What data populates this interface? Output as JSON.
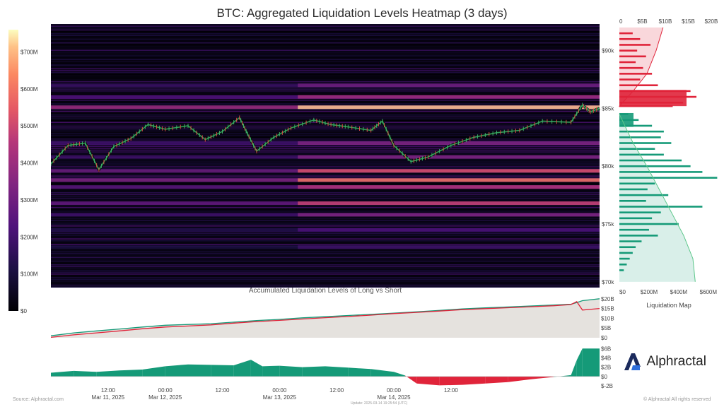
{
  "title": "BTC: Aggregated Liquidation Levels Heatmap (3 days)",
  "colorbar": {
    "ticks": [
      "$0",
      "$100M",
      "$200M",
      "$300M",
      "$400M",
      "$500M",
      "$600M",
      "$700M"
    ],
    "tick_values": [
      0,
      100,
      200,
      300,
      400,
      500,
      600,
      700
    ],
    "max": 760
  },
  "heatmap": {
    "price_ticks": [
      "$70k",
      "$75k",
      "$80k",
      "$85k",
      "$90k"
    ],
    "price_values": [
      70000,
      75000,
      80000,
      85000,
      90000
    ],
    "ylim": [
      69500,
      92300
    ]
  },
  "liq_map": {
    "label": "Liquidation Map",
    "top_ticks": [
      "0",
      "$5B",
      "$10B",
      "$15B",
      "$20B"
    ],
    "bottom_ticks": [
      "$0",
      "$200M",
      "$400M",
      "$600M"
    ],
    "short_color": "#e0243a",
    "long_color": "#159a78"
  },
  "accum": {
    "title": "Accumulated Liquidation Levels of Long vs Short",
    "ticks": [
      "$0",
      "$5B",
      "$10B",
      "$15B",
      "$20B"
    ],
    "tick_values": [
      0,
      5,
      10,
      15,
      20
    ]
  },
  "delta": {
    "ticks": [
      "$-2B",
      "$0",
      "$2B",
      "$4B",
      "$6B"
    ],
    "tick_values": [
      -2,
      0,
      2,
      4,
      6
    ]
  },
  "time_axis": [
    {
      "time": "12:00",
      "date": "Mar 11, 2025"
    },
    {
      "time": "00:00",
      "date": "Mar 12, 2025"
    },
    {
      "time": "12:00",
      "date": ""
    },
    {
      "time": "00:00",
      "date": "Mar 13, 2025"
    },
    {
      "time": "12:00",
      "date": ""
    },
    {
      "time": "00:00",
      "date": "Mar 14, 2025"
    },
    {
      "time": "12:00",
      "date": ""
    }
  ],
  "footer": {
    "source": "Source: Alphractal.com",
    "update": "Update: 2025-03-14 19:25:54 (UTC)",
    "rights": "© Alphractal All rights reserved"
  },
  "logo": {
    "text": "Alphractal"
  },
  "chart_data": [
    {
      "type": "heatmap",
      "title": "BTC: Aggregated Liquidation Levels Heatmap (3 days)",
      "x_range": [
        "Mar 11, 2025 00:00",
        "Mar 14, 2025 19:25"
      ],
      "ylim": [
        69500,
        92300
      ],
      "price_series": [
        {
          "day": 0.0,
          "price": 80200
        },
        {
          "day": 0.15,
          "price": 81800
        },
        {
          "day": 0.3,
          "price": 82000
        },
        {
          "day": 0.42,
          "price": 79700
        },
        {
          "day": 0.55,
          "price": 81700
        },
        {
          "day": 0.7,
          "price": 82400
        },
        {
          "day": 0.85,
          "price": 83600
        },
        {
          "day": 1.0,
          "price": 83200
        },
        {
          "day": 1.2,
          "price": 83500
        },
        {
          "day": 1.35,
          "price": 82300
        },
        {
          "day": 1.5,
          "price": 83000
        },
        {
          "day": 1.65,
          "price": 84200
        },
        {
          "day": 1.72,
          "price": 82800
        },
        {
          "day": 1.8,
          "price": 81300
        },
        {
          "day": 1.95,
          "price": 82500
        },
        {
          "day": 2.1,
          "price": 83300
        },
        {
          "day": 2.3,
          "price": 84000
        },
        {
          "day": 2.45,
          "price": 83600
        },
        {
          "day": 2.6,
          "price": 83400
        },
        {
          "day": 2.8,
          "price": 83100
        },
        {
          "day": 2.9,
          "price": 83900
        },
        {
          "day": 3.0,
          "price": 81800
        },
        {
          "day": 3.15,
          "price": 80400
        },
        {
          "day": 3.3,
          "price": 80800
        },
        {
          "day": 3.5,
          "price": 81800
        },
        {
          "day": 3.7,
          "price": 82500
        },
        {
          "day": 3.9,
          "price": 82900
        },
        {
          "day": 4.1,
          "price": 83100
        },
        {
          "day": 4.3,
          "price": 83900
        },
        {
          "day": 4.55,
          "price": 83800
        },
        {
          "day": 4.65,
          "price": 85300
        },
        {
          "day": 4.72,
          "price": 84700
        },
        {
          "day": 4.8,
          "price": 85000
        }
      ],
      "bands": [
        {
          "price": 85100,
          "intensity": 0.95
        },
        {
          "price": 86000,
          "intensity": 0.55
        },
        {
          "price": 87000,
          "intensity": 0.4
        },
        {
          "price": 79600,
          "intensity": 0.7
        },
        {
          "price": 78800,
          "intensity": 0.8
        },
        {
          "price": 78200,
          "intensity": 0.6
        },
        {
          "price": 76800,
          "intensity": 0.65
        },
        {
          "price": 75800,
          "intensity": 0.45
        },
        {
          "price": 82000,
          "intensity": 0.45
        },
        {
          "price": 80800,
          "intensity": 0.45
        },
        {
          "price": 74500,
          "intensity": 0.3
        },
        {
          "price": 73000,
          "intensity": 0.25
        }
      ]
    },
    {
      "type": "bar",
      "title": "Liquidation Map",
      "orientation": "horizontal",
      "x_unit": "$M",
      "short_levels": [
        {
          "price": 91500,
          "value": 90
        },
        {
          "price": 91000,
          "value": 140
        },
        {
          "price": 90500,
          "value": 210
        },
        {
          "price": 90000,
          "value": 120
        },
        {
          "price": 89500,
          "value": 180
        },
        {
          "price": 89000,
          "value": 110
        },
        {
          "price": 88500,
          "value": 160
        },
        {
          "price": 88000,
          "value": 220
        },
        {
          "price": 87500,
          "value": 140
        },
        {
          "price": 87000,
          "value": 260
        },
        {
          "price": 86500,
          "value": 480
        },
        {
          "price": 86000,
          "value": 520
        },
        {
          "price": 85500,
          "value": 430
        },
        {
          "price": 85200,
          "value": 360
        }
      ],
      "long_levels": [
        {
          "price": 84500,
          "value": 60
        },
        {
          "price": 84000,
          "value": 130
        },
        {
          "price": 83500,
          "value": 220
        },
        {
          "price": 83000,
          "value": 300
        },
        {
          "price": 82500,
          "value": 280
        },
        {
          "price": 82000,
          "value": 350
        },
        {
          "price": 81500,
          "value": 240
        },
        {
          "price": 81000,
          "value": 300
        },
        {
          "price": 80500,
          "value": 420
        },
        {
          "price": 80000,
          "value": 480
        },
        {
          "price": 79500,
          "value": 560
        },
        {
          "price": 79000,
          "value": 660
        },
        {
          "price": 78500,
          "value": 240
        },
        {
          "price": 78000,
          "value": 190
        },
        {
          "price": 77500,
          "value": 330
        },
        {
          "price": 77000,
          "value": 180
        },
        {
          "price": 76500,
          "value": 560
        },
        {
          "price": 76000,
          "value": 280
        },
        {
          "price": 75500,
          "value": 220
        },
        {
          "price": 75000,
          "value": 400
        },
        {
          "price": 74500,
          "value": 200
        },
        {
          "price": 74000,
          "value": 260
        },
        {
          "price": 73500,
          "value": 150
        },
        {
          "price": 73000,
          "value": 110
        },
        {
          "price": 72500,
          "value": 90
        },
        {
          "price": 72000,
          "value": 70
        },
        {
          "price": 71500,
          "value": 50
        },
        {
          "price": 71000,
          "value": 30
        }
      ],
      "cumulative_short_B": [
        {
          "price": 85200,
          "value": 0
        },
        {
          "price": 86500,
          "value": 3
        },
        {
          "price": 88000,
          "value": 6
        },
        {
          "price": 90000,
          "value": 8
        },
        {
          "price": 92000,
          "value": 9.5
        }
      ],
      "cumulative_long_B": [
        {
          "price": 84500,
          "value": 0
        },
        {
          "price": 82000,
          "value": 3
        },
        {
          "price": 80000,
          "value": 6
        },
        {
          "price": 77000,
          "value": 10
        },
        {
          "price": 74000,
          "value": 14
        },
        {
          "price": 72000,
          "value": 16
        },
        {
          "price": 70000,
          "value": 16.5
        }
      ]
    },
    {
      "type": "area",
      "title": "Accumulated Liquidation Levels of Long vs Short",
      "ylabel": "",
      "ylim": [
        0,
        21
      ],
      "x_days": [
        0,
        0.2,
        0.4,
        0.6,
        0.8,
        1.0,
        1.2,
        1.4,
        1.6,
        1.8,
        2.0,
        2.2,
        2.4,
        2.6,
        2.8,
        3.0,
        3.2,
        3.4,
        3.6,
        3.8,
        4.0,
        4.2,
        4.4,
        4.55,
        4.6,
        4.65,
        4.8
      ],
      "series": [
        {
          "name": "",
          "color": "#159a78",
          "values": [
            1,
            2.5,
            3.5,
            4.5,
            5.5,
            6.4,
            6.8,
            7.2,
            8.0,
            8.8,
            9.4,
            10.2,
            10.8,
            11.4,
            12.0,
            12.6,
            13.3,
            14.0,
            14.8,
            15.3,
            15.8,
            16.3,
            16.8,
            17.2,
            18.0,
            19.0,
            20.0
          ]
        },
        {
          "name": "",
          "color": "#e0243a",
          "values": [
            0.2,
            1.5,
            2.5,
            3.5,
            4.6,
            5.5,
            6.0,
            6.6,
            7.5,
            8.3,
            8.9,
            9.6,
            10.3,
            10.9,
            11.6,
            12.4,
            13.0,
            13.7,
            14.4,
            14.9,
            15.4,
            15.9,
            16.4,
            17.0,
            18.5,
            14.2,
            15.0
          ]
        }
      ]
    },
    {
      "type": "area",
      "title": "",
      "ylim": [
        -2,
        6.5
      ],
      "x_days": [
        0,
        0.2,
        0.4,
        0.6,
        0.8,
        1.0,
        1.2,
        1.4,
        1.6,
        1.75,
        1.85,
        2.0,
        2.2,
        2.4,
        2.6,
        2.8,
        3.0,
        3.1,
        3.2,
        3.4,
        3.6,
        3.8,
        4.0,
        4.2,
        4.4,
        4.55,
        4.6,
        4.65,
        4.8
      ],
      "series": [
        {
          "name": "",
          "values": [
            0.8,
            1.2,
            1.0,
            1.3,
            1.5,
            2.2,
            2.6,
            2.5,
            2.4,
            3.6,
            2.2,
            2.3,
            2.0,
            2.2,
            1.9,
            1.6,
            1.0,
            0.2,
            -1.5,
            -1.9,
            -1.8,
            -1.5,
            -1.2,
            -0.6,
            -0.1,
            0.3,
            3.5,
            6.0,
            6.0
          ]
        }
      ],
      "positive_color": "#159a78",
      "negative_color": "#e0243a"
    }
  ]
}
